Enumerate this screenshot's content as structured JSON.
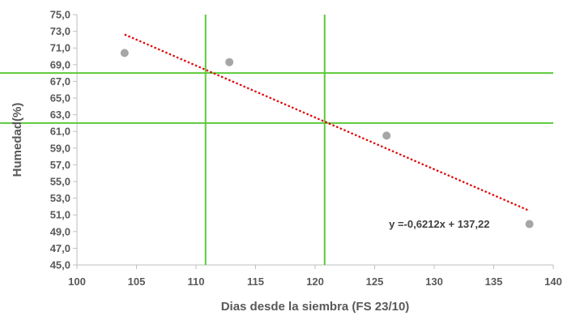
{
  "chart_data": {
    "type": "scatter",
    "title": "",
    "xlabel": "Dias desde la siembra (FS 23/10)",
    "ylabel": "Humedad(%)",
    "xlim": [
      100,
      140
    ],
    "ylim": [
      45,
      75
    ],
    "x_ticks": [
      "100",
      "105",
      "110",
      "115",
      "120",
      "125",
      "130",
      "135",
      "140"
    ],
    "y_ticks": [
      "45,0",
      "47,0",
      "49,0",
      "51,0",
      "53,0",
      "55,0",
      "57,0",
      "59,0",
      "61,0",
      "63,0",
      "65,0",
      "67,0",
      "69,0",
      "71,0",
      "73,0",
      "75,0"
    ],
    "series": [
      {
        "points": [
          {
            "x": 104,
            "y": 70.4
          },
          {
            "x": 112.8,
            "y": 69.3
          },
          {
            "x": 126,
            "y": 60.5
          },
          {
            "x": 138,
            "y": 49.9
          }
        ],
        "color": "#a6a6a6"
      }
    ],
    "trendline": {
      "slope": -0.6212,
      "intercept": 137.22,
      "x_range": [
        104,
        138
      ],
      "color": "#e00000",
      "label": "y =-0,6212x + 137,22"
    },
    "reference_lines": {
      "vertical_x": [
        110.8,
        120.8
      ],
      "horizontal_y": [
        68,
        62
      ],
      "color": "#5cc93a"
    }
  }
}
